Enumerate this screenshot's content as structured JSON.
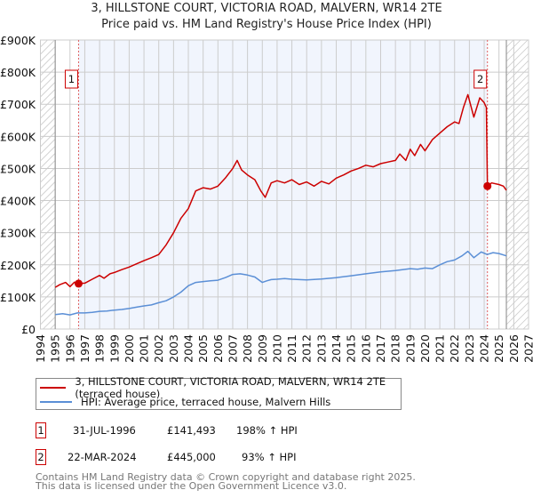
{
  "title": "3, HILLSTONE COURT, VICTORIA ROAD, MALVERN, WR14 2TE",
  "subtitle": "Price paid vs. HM Land Registry's House Price Index (HPI)",
  "chart_data": {
    "type": "line",
    "title": "3, HILLSTONE COURT, VICTORIA ROAD, MALVERN, WR14 2TE",
    "subtitle": "Price paid vs. HM Land Registry's House Price Index (HPI)",
    "xlim": [
      1994,
      2027
    ],
    "ylim": [
      0,
      900000
    ],
    "x_ticks": [
      "1994",
      "1995",
      "1996",
      "1997",
      "1998",
      "1999",
      "2000",
      "2001",
      "2002",
      "2003",
      "2004",
      "2005",
      "2006",
      "2007",
      "2008",
      "2009",
      "2010",
      "2011",
      "2012",
      "2013",
      "2014",
      "2015",
      "2016",
      "2017",
      "2018",
      "2019",
      "2020",
      "2021",
      "2022",
      "2023",
      "2024",
      "2025",
      "2026",
      "2027"
    ],
    "y_ticks": [
      {
        "v": 0,
        "label": "£0"
      },
      {
        "v": 100000,
        "label": "£100K"
      },
      {
        "v": 200000,
        "label": "£200K"
      },
      {
        "v": 300000,
        "label": "£300K"
      },
      {
        "v": 400000,
        "label": "£400K"
      },
      {
        "v": 500000,
        "label": "£500K"
      },
      {
        "v": 600000,
        "label": "£600K"
      },
      {
        "v": 700000,
        "label": "£700K"
      },
      {
        "v": 800000,
        "label": "£800K"
      },
      {
        "v": 900000,
        "label": "£900K"
      }
    ],
    "grid": true,
    "data_range_x": [
      1995,
      2025.5
    ],
    "series": [
      {
        "name": "3, HILLSTONE COURT, VICTORIA ROAD, MALVERN, WR14 2TE (terraced house)",
        "color": "#cc0000",
        "x": [
          1995,
          1995.3,
          1995.7,
          1996,
          1996.3,
          1996.58,
          1997,
          1997.5,
          1998,
          1998.3,
          1998.7,
          1999,
          1999.5,
          2000,
          2000.5,
          2001,
          2001.5,
          2002,
          2002.5,
          2003,
          2003.5,
          2004,
          2004.5,
          2005,
          2005.5,
          2006,
          2006.5,
          2007,
          2007.3,
          2007.6,
          2008,
          2008.5,
          2008.9,
          2009.2,
          2009.6,
          2010,
          2010.5,
          2011,
          2011.5,
          2012,
          2012.5,
          2013,
          2013.5,
          2014,
          2014.5,
          2015,
          2015.5,
          2016,
          2016.5,
          2017,
          2017.5,
          2018,
          2018.3,
          2018.7,
          2019,
          2019.3,
          2019.7,
          2020,
          2020.5,
          2021,
          2021.5,
          2022,
          2022.3,
          2022.6,
          2022.9,
          2023.3,
          2023.7,
          2024.0,
          2024.15,
          2024.22,
          2024.5,
          2025,
          2025.3,
          2025.5
        ],
        "y": [
          130000,
          138000,
          145000,
          132000,
          146000,
          141493,
          143000,
          155000,
          167000,
          158000,
          172000,
          176000,
          185000,
          193000,
          203000,
          213000,
          222000,
          232000,
          262000,
          300000,
          345000,
          375000,
          430000,
          440000,
          436000,
          445000,
          470000,
          500000,
          525000,
          495000,
          480000,
          465000,
          430000,
          410000,
          455000,
          462000,
          455000,
          465000,
          450000,
          458000,
          445000,
          460000,
          452000,
          470000,
          480000,
          492000,
          500000,
          510000,
          505000,
          515000,
          520000,
          525000,
          545000,
          525000,
          560000,
          540000,
          575000,
          555000,
          590000,
          610000,
          630000,
          645000,
          640000,
          690000,
          730000,
          660000,
          720000,
          705000,
          690000,
          445000,
          455000,
          450000,
          445000,
          432000
        ]
      },
      {
        "name": "HPI: Average price, terraced house, Malvern Hills",
        "color": "#5b8fd6",
        "x": [
          1995,
          1995.5,
          1996,
          1996.5,
          1997,
          1997.5,
          1998,
          1998.5,
          1999,
          1999.5,
          2000,
          2000.5,
          2001,
          2001.5,
          2002,
          2002.5,
          2003,
          2003.5,
          2004,
          2004.5,
          2005,
          2005.5,
          2006,
          2006.5,
          2007,
          2007.5,
          2008,
          2008.5,
          2009,
          2009.3,
          2009.6,
          2010,
          2010.5,
          2011,
          2012,
          2013,
          2014,
          2015,
          2016,
          2017,
          2018,
          2019,
          2019.5,
          2020,
          2020.5,
          2021,
          2021.5,
          2022,
          2022.5,
          2022.9,
          2023.3,
          2023.8,
          2024.2,
          2024.6,
          2025,
          2025.5
        ],
        "y": [
          45000,
          48000,
          44000,
          50000,
          50000,
          52000,
          55000,
          56000,
          59000,
          61000,
          64000,
          68000,
          72000,
          75000,
          82000,
          88000,
          100000,
          115000,
          135000,
          145000,
          148000,
          150000,
          152000,
          160000,
          170000,
          172000,
          168000,
          162000,
          145000,
          150000,
          154000,
          155000,
          157000,
          155000,
          153000,
          156000,
          160000,
          166000,
          172000,
          178000,
          182000,
          188000,
          186000,
          190000,
          188000,
          200000,
          210000,
          215000,
          228000,
          242000,
          222000,
          240000,
          232000,
          238000,
          235000,
          228000
        ]
      }
    ],
    "annotations": [
      {
        "label": "1",
        "x": 1996.58,
        "y": 141493
      },
      {
        "label": "2",
        "x": 2024.22,
        "y": 445000
      }
    ]
  },
  "legend": {
    "items": [
      {
        "label": "3, HILLSTONE COURT, VICTORIA ROAD, MALVERN, WR14 2TE (terraced house)",
        "color": "#cc0000"
      },
      {
        "label": "HPI: Average price, terraced house, Malvern Hills",
        "color": "#5b8fd6"
      }
    ]
  },
  "sales": [
    {
      "num": "1",
      "date": "31-JUL-1996",
      "price": "£141,493",
      "hpi": "198% ↑ HPI"
    },
    {
      "num": "2",
      "date": "22-MAR-2024",
      "price": "£445,000",
      "hpi": "93% ↑ HPI"
    }
  ],
  "footer": {
    "line1": "Contains HM Land Registry data © Crown copyright and database right 2025.",
    "line2": "This data is licensed under the Open Government Licence v3.0."
  }
}
